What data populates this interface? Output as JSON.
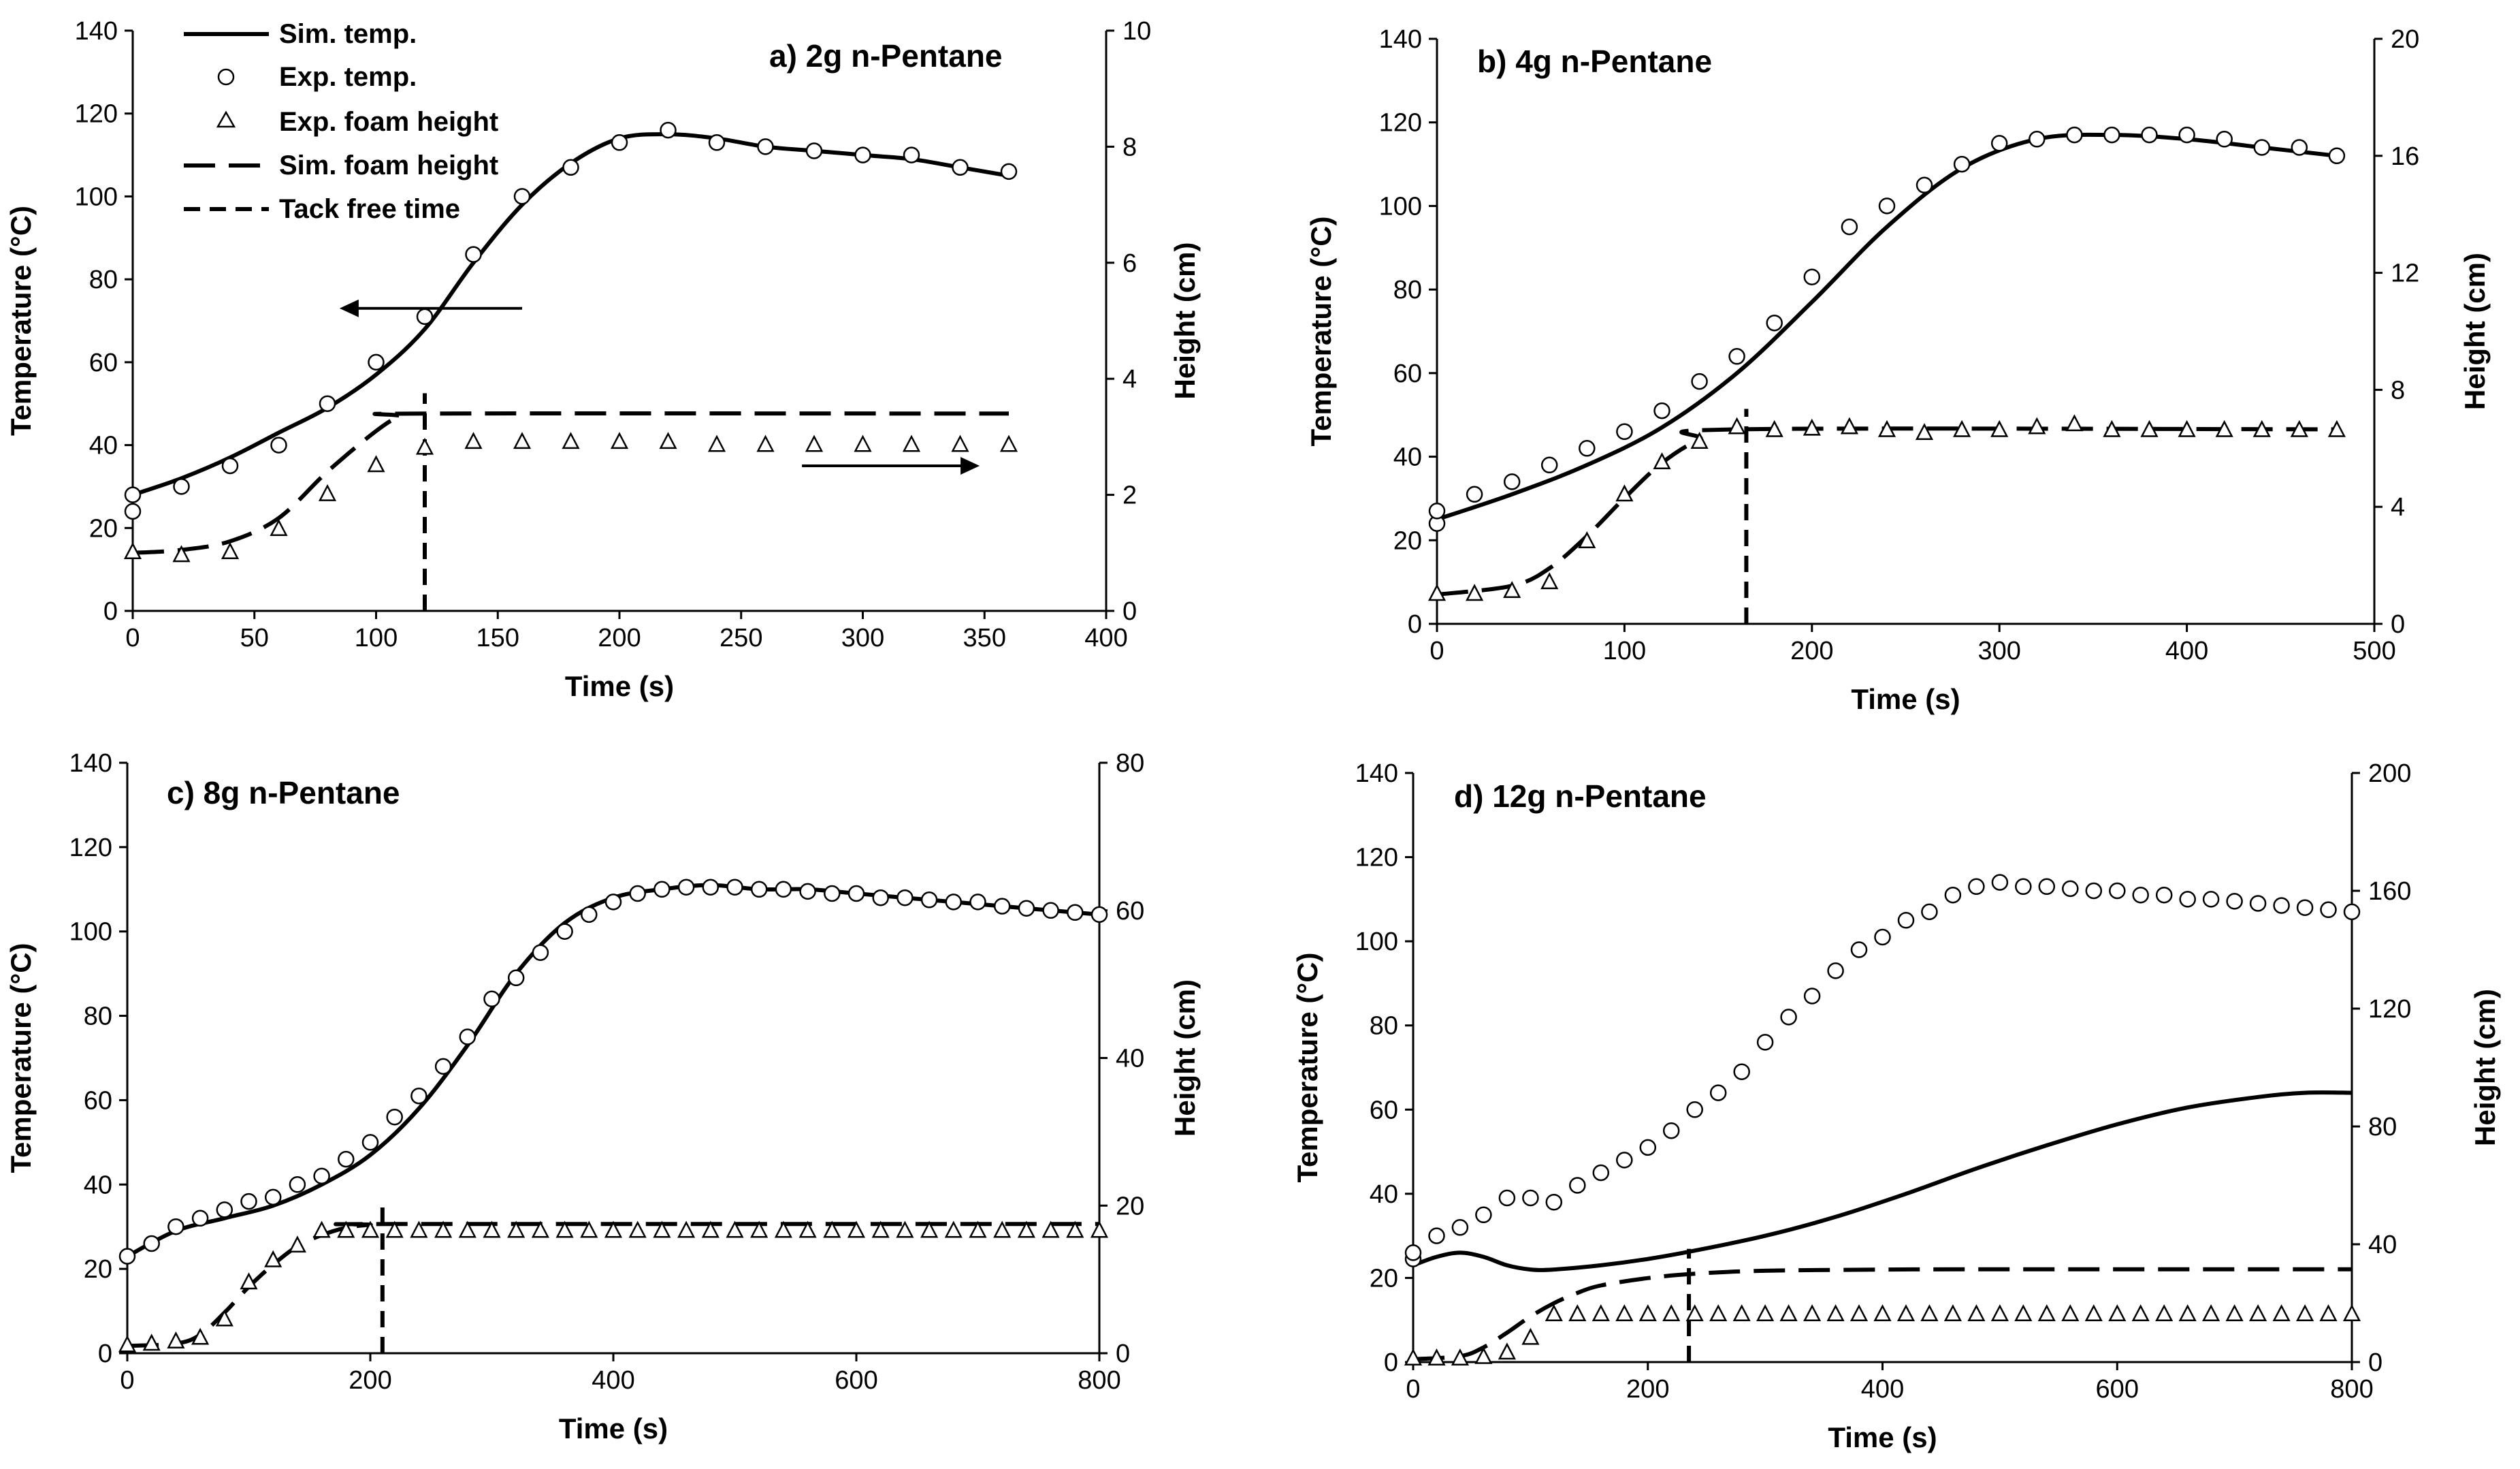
{
  "legend": {
    "sim_temp": "Sim. temp.",
    "exp_temp": "Exp. temp.",
    "exp_foam": "Exp. foam height",
    "sim_foam": "Sim. foam height",
    "tack": "Tack free time"
  },
  "colors": {
    "ink": "#000000",
    "background": "#ffffff"
  },
  "chart_data": [
    {
      "type": "line",
      "panel": "a",
      "title": "a) 2g n-Pentane",
      "xlabel": "Time (s)",
      "ylabel": "Temperature (°C)",
      "y2label": "Height (cm)",
      "xlim": [
        0,
        400
      ],
      "ylim": [
        0,
        140
      ],
      "y2lim": [
        0,
        10
      ],
      "xticks": [
        0,
        50,
        100,
        150,
        200,
        250,
        300,
        350,
        400
      ],
      "yticks": [
        0,
        20,
        40,
        60,
        80,
        100,
        120,
        140
      ],
      "y2ticks": [
        0,
        2,
        4,
        6,
        8,
        10
      ],
      "tack_free_time": 120,
      "series": [
        {
          "name": "Sim. temp.",
          "axis": "left",
          "style": "solid",
          "x": [
            0,
            20,
            40,
            60,
            80,
            100,
            120,
            140,
            160,
            180,
            200,
            220,
            240,
            260,
            280,
            300,
            320,
            340,
            360
          ],
          "y": [
            28,
            32,
            37,
            43,
            49,
            57,
            68,
            84,
            98,
            108,
            114,
            115,
            114,
            112,
            111,
            110,
            109,
            107,
            105
          ]
        },
        {
          "name": "Exp. temp.",
          "axis": "left",
          "style": "circle",
          "x": [
            0,
            0,
            20,
            40,
            60,
            80,
            100,
            120,
            140,
            160,
            180,
            200,
            220,
            240,
            260,
            280,
            300,
            320,
            340,
            360
          ],
          "y": [
            24,
            28,
            30,
            35,
            40,
            50,
            60,
            71,
            86,
            100,
            107,
            113,
            116,
            113,
            112,
            111,
            110,
            110,
            107,
            106
          ]
        },
        {
          "name": "Sim. foam height",
          "axis": "right",
          "style": "dash",
          "x": [
            0,
            20,
            40,
            60,
            80,
            100,
            110,
            120,
            360
          ],
          "y": [
            1.0,
            1.05,
            1.2,
            1.6,
            2.4,
            3.1,
            3.35,
            3.4,
            3.4
          ]
        },
        {
          "name": "Exp. foam height",
          "axis": "right",
          "style": "triangle",
          "x": [
            0,
            20,
            40,
            60,
            80,
            100,
            120,
            140,
            160,
            180,
            200,
            220,
            240,
            260,
            280,
            300,
            320,
            340,
            360
          ],
          "y": [
            1.0,
            0.95,
            1.0,
            1.4,
            2.0,
            2.5,
            2.8,
            2.9,
            2.9,
            2.9,
            2.9,
            2.9,
            2.85,
            2.85,
            2.85,
            2.85,
            2.85,
            2.85,
            2.85
          ]
        }
      ],
      "annotations": [
        {
          "type": "arrow",
          "from": [
            160,
            73
          ],
          "to": [
            85,
            73
          ],
          "axis": "left"
        },
        {
          "type": "arrow",
          "from": [
            275,
            35
          ],
          "to": [
            348,
            35
          ],
          "axis": "left"
        }
      ]
    },
    {
      "type": "line",
      "panel": "b",
      "title": "b) 4g n-Pentane",
      "xlabel": "Time (s)",
      "ylabel": "Temperature (°C)",
      "y2label": "Height (cm)",
      "xlim": [
        0,
        500
      ],
      "ylim": [
        0,
        140
      ],
      "y2lim": [
        0,
        20
      ],
      "xticks": [
        0,
        100,
        200,
        300,
        400,
        500
      ],
      "yticks": [
        0,
        20,
        40,
        60,
        80,
        100,
        120,
        140
      ],
      "y2ticks": [
        0,
        4,
        8,
        12,
        16,
        20
      ],
      "tack_free_time": 165,
      "series": [
        {
          "name": "Sim. temp.",
          "axis": "left",
          "style": "solid",
          "x": [
            0,
            40,
            80,
            120,
            160,
            200,
            240,
            280,
            320,
            360,
            400,
            440,
            480
          ],
          "y": [
            25,
            31,
            38,
            47,
            60,
            77,
            95,
            109,
            116,
            117,
            116,
            114,
            112
          ]
        },
        {
          "name": "Exp. temp.",
          "axis": "left",
          "style": "circle",
          "x": [
            0,
            0,
            20,
            40,
            60,
            80,
            100,
            120,
            140,
            160,
            180,
            200,
            220,
            240,
            260,
            280,
            300,
            320,
            340,
            360,
            380,
            400,
            420,
            440,
            460,
            480
          ],
          "y": [
            24,
            27,
            31,
            34,
            38,
            42,
            46,
            51,
            58,
            64,
            72,
            83,
            95,
            100,
            105,
            110,
            115,
            116,
            117,
            117,
            117,
            117,
            116,
            114,
            114,
            112
          ]
        },
        {
          "name": "Sim. foam height",
          "axis": "right",
          "style": "dash",
          "x": [
            0,
            40,
            60,
            80,
            100,
            120,
            140,
            160,
            480
          ],
          "y": [
            1.0,
            1.3,
            1.9,
            3.0,
            4.3,
            5.5,
            6.3,
            6.65,
            6.65
          ]
        },
        {
          "name": "Exp. foam height",
          "axis": "right",
          "style": "triangle",
          "x": [
            0,
            20,
            40,
            60,
            80,
            100,
            120,
            140,
            160,
            180,
            200,
            220,
            240,
            260,
            280,
            300,
            320,
            340,
            360,
            380,
            400,
            420,
            440,
            460,
            480
          ],
          "y": [
            1.0,
            1.0,
            1.1,
            1.4,
            2.8,
            4.4,
            5.5,
            6.2,
            6.7,
            6.6,
            6.65,
            6.7,
            6.6,
            6.5,
            6.6,
            6.6,
            6.7,
            6.8,
            6.6,
            6.6,
            6.6,
            6.6,
            6.6,
            6.6,
            6.6
          ]
        }
      ]
    },
    {
      "type": "line",
      "panel": "c",
      "title": "c) 8g n-Pentane",
      "xlabel": "Time (s)",
      "ylabel": "Temperature (°C)",
      "y2label": "Height (cm)",
      "xlim": [
        0,
        800
      ],
      "ylim": [
        0,
        140
      ],
      "y2lim": [
        0,
        80
      ],
      "xticks": [
        0,
        200,
        400,
        600,
        800
      ],
      "yticks": [
        0,
        20,
        40,
        60,
        80,
        100,
        120,
        140
      ],
      "y2ticks": [
        0,
        20,
        40,
        60,
        80
      ],
      "tack_free_time": 210,
      "series": [
        {
          "name": "Sim. temp.",
          "axis": "left",
          "style": "solid",
          "x": [
            0,
            40,
            80,
            120,
            160,
            200,
            240,
            280,
            320,
            360,
            400,
            440,
            480,
            520,
            560,
            600,
            640,
            680,
            720,
            760,
            800
          ],
          "y": [
            23,
            29,
            32,
            35,
            40,
            47,
            58,
            73,
            90,
            102,
            108,
            110,
            111,
            110,
            110,
            109,
            108,
            107,
            106,
            105,
            104
          ]
        },
        {
          "name": "Exp. temp.",
          "axis": "left",
          "style": "circle",
          "x": [
            0,
            20,
            40,
            60,
            80,
            100,
            120,
            140,
            160,
            180,
            200,
            220,
            240,
            260,
            280,
            300,
            320,
            340,
            360,
            380,
            400,
            420,
            440,
            460,
            480,
            500,
            520,
            540,
            560,
            580,
            600,
            620,
            640,
            660,
            680,
            700,
            720,
            740,
            760,
            780,
            800
          ],
          "y": [
            23,
            26,
            30,
            32,
            34,
            36,
            37,
            40,
            42,
            46,
            50,
            56,
            61,
            68,
            75,
            84,
            89,
            95,
            100,
            104,
            107,
            109,
            110,
            110.5,
            110.5,
            110.5,
            110,
            110,
            109.5,
            109,
            109,
            108,
            108,
            107.5,
            107,
            107,
            106,
            105.5,
            105,
            104.5,
            104
          ]
        },
        {
          "name": "Sim. foam height",
          "axis": "right",
          "style": "dash",
          "x": [
            0,
            40,
            60,
            80,
            100,
            120,
            140,
            160,
            180,
            200,
            220,
            800
          ],
          "y": [
            1.0,
            1.3,
            2.5,
            5.5,
            9.0,
            12.0,
            14.5,
            16.0,
            17.0,
            17.4,
            17.5,
            17.5
          ]
        },
        {
          "name": "Exp. foam height",
          "axis": "right",
          "style": "triangle",
          "x": [
            0,
            20,
            40,
            60,
            80,
            100,
            120,
            140,
            160,
            180,
            200,
            220,
            240,
            260,
            280,
            300,
            320,
            340,
            360,
            380,
            400,
            420,
            440,
            460,
            480,
            500,
            520,
            540,
            560,
            580,
            600,
            620,
            640,
            660,
            680,
            700,
            720,
            740,
            760,
            780,
            800
          ],
          "y": [
            1.0,
            1.2,
            1.5,
            2.0,
            4.5,
            9.5,
            12.5,
            14.5,
            16.5,
            16.5,
            16.5,
            16.5,
            16.5,
            16.5,
            16.5,
            16.5,
            16.5,
            16.5,
            16.5,
            16.5,
            16.5,
            16.5,
            16.5,
            16.5,
            16.5,
            16.5,
            16.5,
            16.5,
            16.5,
            16.5,
            16.5,
            16.5,
            16.5,
            16.5,
            16.5,
            16.5,
            16.5,
            16.5,
            16.5,
            16.5,
            16.5
          ]
        }
      ]
    },
    {
      "type": "line",
      "panel": "d",
      "title": "d) 12g n-Pentane",
      "xlabel": "Time (s)",
      "ylabel": "Temperature (°C)",
      "y2label": "Height (cm)",
      "xlim": [
        0,
        800
      ],
      "ylim": [
        0,
        140
      ],
      "y2lim": [
        0,
        200
      ],
      "xticks": [
        0,
        200,
        400,
        600,
        800
      ],
      "yticks": [
        0,
        20,
        40,
        60,
        80,
        100,
        120,
        140
      ],
      "y2ticks": [
        0,
        40,
        80,
        120,
        160,
        200
      ],
      "tack_free_time": 235,
      "series": [
        {
          "name": "Sim. temp.",
          "axis": "left",
          "style": "solid",
          "x": [
            0,
            20,
            40,
            60,
            80,
            100,
            120,
            160,
            200,
            240,
            300,
            360,
            420,
            480,
            540,
            600,
            660,
            720,
            760,
            800
          ],
          "y": [
            23,
            25,
            26,
            25,
            23,
            22,
            22,
            23,
            24.5,
            26.5,
            30,
            34.5,
            40,
            46,
            51.5,
            56.5,
            60.5,
            63,
            64,
            64
          ]
        },
        {
          "name": "Exp. temp.",
          "axis": "left",
          "style": "circle",
          "x": [
            0,
            0,
            20,
            40,
            60,
            80,
            100,
            120,
            140,
            160,
            180,
            200,
            220,
            240,
            260,
            280,
            300,
            320,
            340,
            360,
            380,
            400,
            420,
            440,
            460,
            480,
            500,
            520,
            540,
            560,
            580,
            600,
            620,
            640,
            660,
            680,
            700,
            720,
            740,
            760,
            780,
            800
          ],
          "y": [
            24.5,
            26,
            30,
            32,
            35,
            39,
            39,
            38,
            42,
            45,
            48,
            51,
            55,
            60,
            64,
            69,
            76,
            82,
            87,
            93,
            98,
            101,
            105,
            107,
            111,
            113,
            114,
            113,
            113,
            112.5,
            112,
            112,
            111,
            111,
            110,
            110,
            109.5,
            109,
            108.5,
            108,
            107.5,
            107
          ]
        },
        {
          "name": "Sim. foam height",
          "axis": "right",
          "style": "dash",
          "x": [
            0,
            40,
            60,
            80,
            100,
            120,
            140,
            160,
            200,
            240,
            300,
            400,
            500,
            800
          ],
          "y": [
            1.0,
            2.0,
            5.0,
            10.0,
            15.5,
            20.0,
            23.5,
            26.0,
            28.5,
            30.0,
            31.0,
            31.4,
            31.5,
            31.5
          ]
        },
        {
          "name": "Exp. foam height",
          "axis": "right",
          "style": "triangle",
          "x": [
            0,
            20,
            40,
            60,
            80,
            100,
            120,
            140,
            160,
            180,
            200,
            220,
            240,
            260,
            280,
            300,
            320,
            340,
            360,
            380,
            400,
            420,
            440,
            460,
            480,
            500,
            520,
            540,
            560,
            580,
            600,
            620,
            640,
            660,
            680,
            700,
            720,
            740,
            760,
            780,
            800
          ],
          "y": [
            1.0,
            1.0,
            1.0,
            1.5,
            3.0,
            8.0,
            16.0,
            16.0,
            16.0,
            16.0,
            16.0,
            16.0,
            16.0,
            16.0,
            16.0,
            16.0,
            16.0,
            16.0,
            16.0,
            16.0,
            16.0,
            16.0,
            16.0,
            16.0,
            16.0,
            16.0,
            16.0,
            16.0,
            16.0,
            16.0,
            16.0,
            16.0,
            16.0,
            16.0,
            16.0,
            16.0,
            16.0,
            16.0,
            16.0,
            16.0,
            16.0
          ]
        }
      ]
    }
  ]
}
